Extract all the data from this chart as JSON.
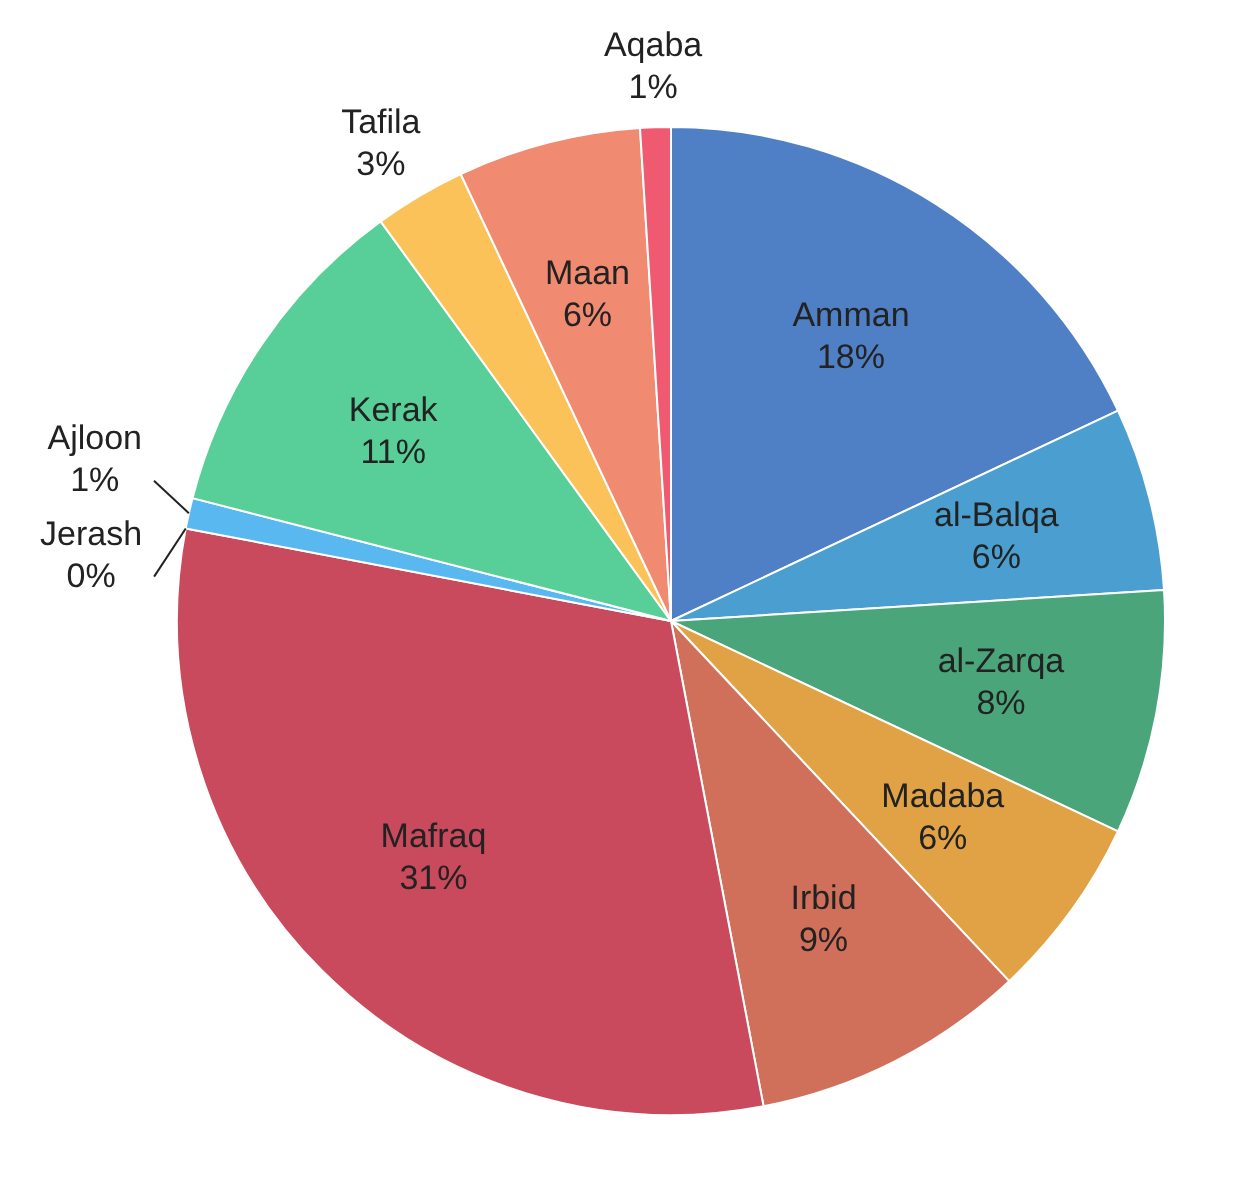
{
  "chart_data": {
    "type": "pie",
    "categories": [
      "Amman",
      "al-Balqa",
      "al-Zarqa",
      "Madaba",
      "Irbid",
      "Mafraq",
      "Jerash",
      "Ajloon",
      "Kerak",
      "Tafila",
      "Maan",
      "Aqaba"
    ],
    "values": [
      18,
      6,
      8,
      6,
      9,
      31,
      0,
      1,
      11,
      3,
      6,
      1
    ],
    "value_labels": [
      "18%",
      "6%",
      "8%",
      "6%",
      "9%",
      "31%",
      "0%",
      "1%",
      "11%",
      "3%",
      "6%",
      "1%"
    ],
    "colors": [
      "#4f7fc4",
      "#4a9fd0",
      "#4aa57a",
      "#e0a245",
      "#d0705a",
      "#c84a5c",
      "#3a7fd0",
      "#5ab8f0",
      "#58cf98",
      "#fcc25a",
      "#f08a70",
      "#f05a70"
    ]
  }
}
